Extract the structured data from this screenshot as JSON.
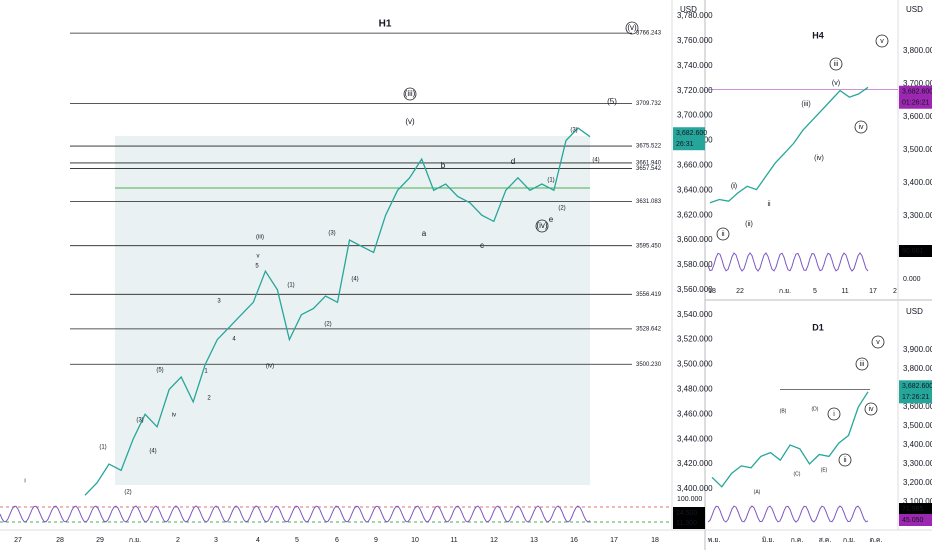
{
  "h1": {
    "title": "H1",
    "currency": "USD",
    "price_label": "3,682.600",
    "timer_label": "26:31",
    "osc_labels": [
      "24.500",
      "11.300"
    ],
    "osc_top": "100.000",
    "yticks": [
      "3,780.000",
      "3,760.000",
      "3,740.000",
      "3,720.000",
      "3,700.000",
      "3,680.000",
      "3,660.000",
      "3,640.000",
      "3,620.000",
      "3,600.000",
      "3,580.000",
      "3,560.000",
      "3,540.000",
      "3,520.000",
      "3,500.000",
      "3,480.000",
      "3,460.000",
      "3,440.000",
      "3,420.000",
      "3,400.000"
    ],
    "levels": [
      "3766.243",
      "3709.732",
      "3675.522",
      "3661.940",
      "3657.542",
      "3631.083",
      "3595.450",
      "3556.419",
      "3528.642",
      "3500.230"
    ],
    "xlabels": [
      "27",
      "28",
      "29",
      "ก.ย.",
      "2",
      "3",
      "4",
      "5",
      "6",
      "9",
      "10",
      "11",
      "12",
      "13",
      "16",
      "17",
      "18"
    ],
    "waves": [
      "(v)",
      "(iii)",
      "(v)",
      "(5)",
      "b",
      "d",
      "a",
      "c",
      "e",
      "(iv)",
      "(iii)",
      "(iv)",
      "3",
      "4",
      "v",
      "5",
      "1",
      "2",
      "(1)",
      "(2)",
      "(3)",
      "(4)",
      "(5)",
      "iv",
      "i",
      "(3)",
      "(4)",
      "(1)",
      "(2)",
      "(3)",
      "(4)",
      "(1)",
      "(2)"
    ],
    "prices": [
      3395,
      3405,
      3420,
      3415,
      3440,
      3460,
      3450,
      3480,
      3490,
      3470,
      3500,
      3520,
      3530,
      3540,
      3550,
      3575,
      3560,
      3520,
      3540,
      3545,
      3555,
      3550,
      3600,
      3595,
      3590,
      3620,
      3640,
      3650,
      3665,
      3640,
      3645,
      3635,
      3630,
      3620,
      3615,
      3640,
      3650,
      3640,
      3645,
      3640,
      3680,
      3690,
      3683
    ]
  },
  "h4": {
    "title": "H4",
    "currency": "USD",
    "price_label": "3,682.600",
    "timer_label": "01:26:21",
    "osc_label": "90.081",
    "osc_zero": "0.000",
    "yticks": [
      "3,800.000",
      "3,700.000",
      "3,600.000",
      "3,500.000",
      "3,400.000",
      "3,300.000"
    ],
    "xlabels": [
      "18",
      "22",
      "ก.ย.",
      "5",
      "11",
      "17",
      "2"
    ],
    "waves": [
      "v",
      "iii",
      "(v)",
      "(iii)",
      "iv",
      "ii",
      "i",
      "(ii)",
      "(i)",
      "(iv)",
      "ii"
    ],
    "prices": [
      3340,
      3350,
      3345,
      3370,
      3390,
      3380,
      3420,
      3460,
      3490,
      3520,
      3560,
      3590,
      3620,
      3650,
      3680,
      3660,
      3670,
      3690
    ]
  },
  "d1": {
    "title": "D1",
    "currency": "USD",
    "price_label": "3,682.600",
    "timer_label": "17:26:21",
    "osc_labels": [
      "71.965",
      "45.050"
    ],
    "yticks": [
      "3,900.000",
      "3,800.000",
      "3,600.000",
      "3,500.000",
      "3,400.000",
      "3,300.000",
      "3,200.000",
      "3,100.000"
    ],
    "xlabels": [
      "พ.ย.",
      "มิ.ย.",
      "ก.ค.",
      "ส.ค.",
      "ก.ย.",
      "ต.ค."
    ],
    "waves": [
      "v",
      "iii",
      "iv",
      "i",
      "ii",
      "(A)",
      "(B)",
      "(C)",
      "(D)",
      "(E)"
    ],
    "prices": [
      3230,
      3180,
      3250,
      3290,
      3280,
      3340,
      3360,
      3320,
      3400,
      3380,
      3300,
      3350,
      3340,
      3410,
      3450,
      3600,
      3680
    ]
  }
}
